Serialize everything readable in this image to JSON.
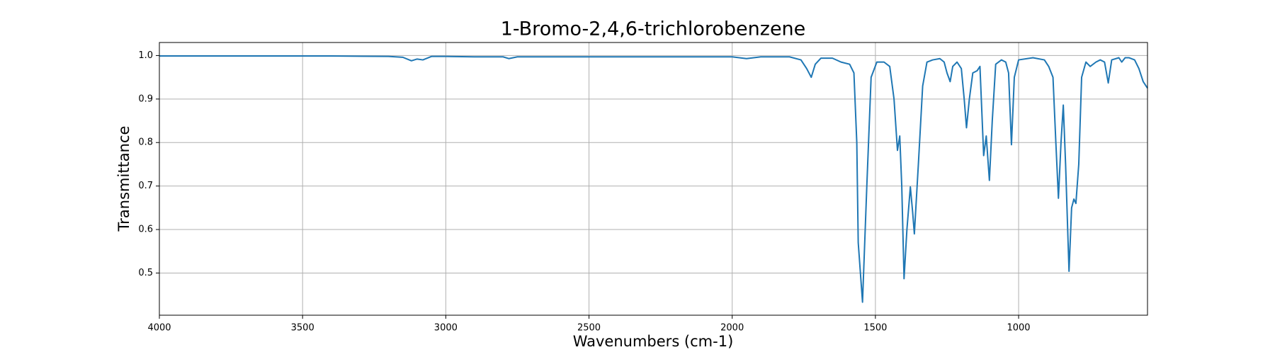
{
  "chart_data": {
    "type": "line",
    "title": "1-Bromo-2,4,6-trichlorobenzene",
    "x_label": "Wavenumbers (cm-1)",
    "y_label": "Transmittance",
    "x": [
      4000,
      3800,
      3600,
      3400,
      3200,
      3150,
      3120,
      3100,
      3080,
      3050,
      3000,
      2900,
      2800,
      2780,
      2750,
      2600,
      2400,
      2200,
      2000,
      1950,
      1900,
      1800,
      1760,
      1740,
      1724,
      1710,
      1690,
      1650,
      1620,
      1590,
      1575,
      1565,
      1560,
      1545,
      1530,
      1515,
      1495,
      1470,
      1450,
      1435,
      1423,
      1415,
      1408,
      1400,
      1390,
      1378,
      1370,
      1364,
      1350,
      1335,
      1320,
      1300,
      1275,
      1260,
      1250,
      1239,
      1230,
      1215,
      1200,
      1190,
      1182,
      1172,
      1160,
      1145,
      1135,
      1122,
      1113,
      1102,
      1092,
      1080,
      1060,
      1045,
      1035,
      1025,
      1015,
      1000,
      950,
      910,
      895,
      880,
      870,
      861,
      852,
      844,
      836,
      824,
      815,
      807,
      800,
      790,
      780,
      765,
      750,
      730,
      715,
      700,
      687,
      675,
      650,
      640,
      628,
      615,
      595,
      580,
      565,
      555,
      550
    ],
    "values": [
      0.999,
      0.999,
      0.999,
      0.999,
      0.998,
      0.996,
      0.988,
      0.992,
      0.99,
      0.998,
      0.998,
      0.997,
      0.997,
      0.993,
      0.997,
      0.997,
      0.997,
      0.997,
      0.997,
      0.993,
      0.997,
      0.997,
      0.99,
      0.97,
      0.95,
      0.98,
      0.994,
      0.994,
      0.985,
      0.98,
      0.96,
      0.8,
      0.57,
      0.433,
      0.7,
      0.95,
      0.985,
      0.985,
      0.975,
      0.9,
      0.782,
      0.815,
      0.7,
      0.487,
      0.6,
      0.698,
      0.64,
      0.59,
      0.75,
      0.93,
      0.985,
      0.99,
      0.993,
      0.985,
      0.96,
      0.94,
      0.975,
      0.985,
      0.97,
      0.9,
      0.834,
      0.9,
      0.96,
      0.965,
      0.975,
      0.77,
      0.815,
      0.713,
      0.85,
      0.98,
      0.99,
      0.985,
      0.96,
      0.795,
      0.95,
      0.99,
      0.995,
      0.99,
      0.975,
      0.95,
      0.8,
      0.672,
      0.8,
      0.886,
      0.75,
      0.504,
      0.65,
      0.67,
      0.66,
      0.75,
      0.95,
      0.985,
      0.975,
      0.985,
      0.99,
      0.985,
      0.937,
      0.99,
      0.995,
      0.985,
      0.995,
      0.995,
      0.99,
      0.97,
      0.94,
      0.93,
      0.925
    ],
    "color": "#1f77b4",
    "xlim": [
      4000,
      550
    ],
    "ylim": [
      0.403,
      1.03
    ],
    "xticks": [
      4000,
      3500,
      3000,
      2500,
      2000,
      1500,
      1000
    ],
    "yticks": [
      0.5,
      0.6,
      0.7,
      0.8,
      0.9,
      {
        "value": 1,
        "label": "1.0"
      }
    ],
    "grid": true
  }
}
